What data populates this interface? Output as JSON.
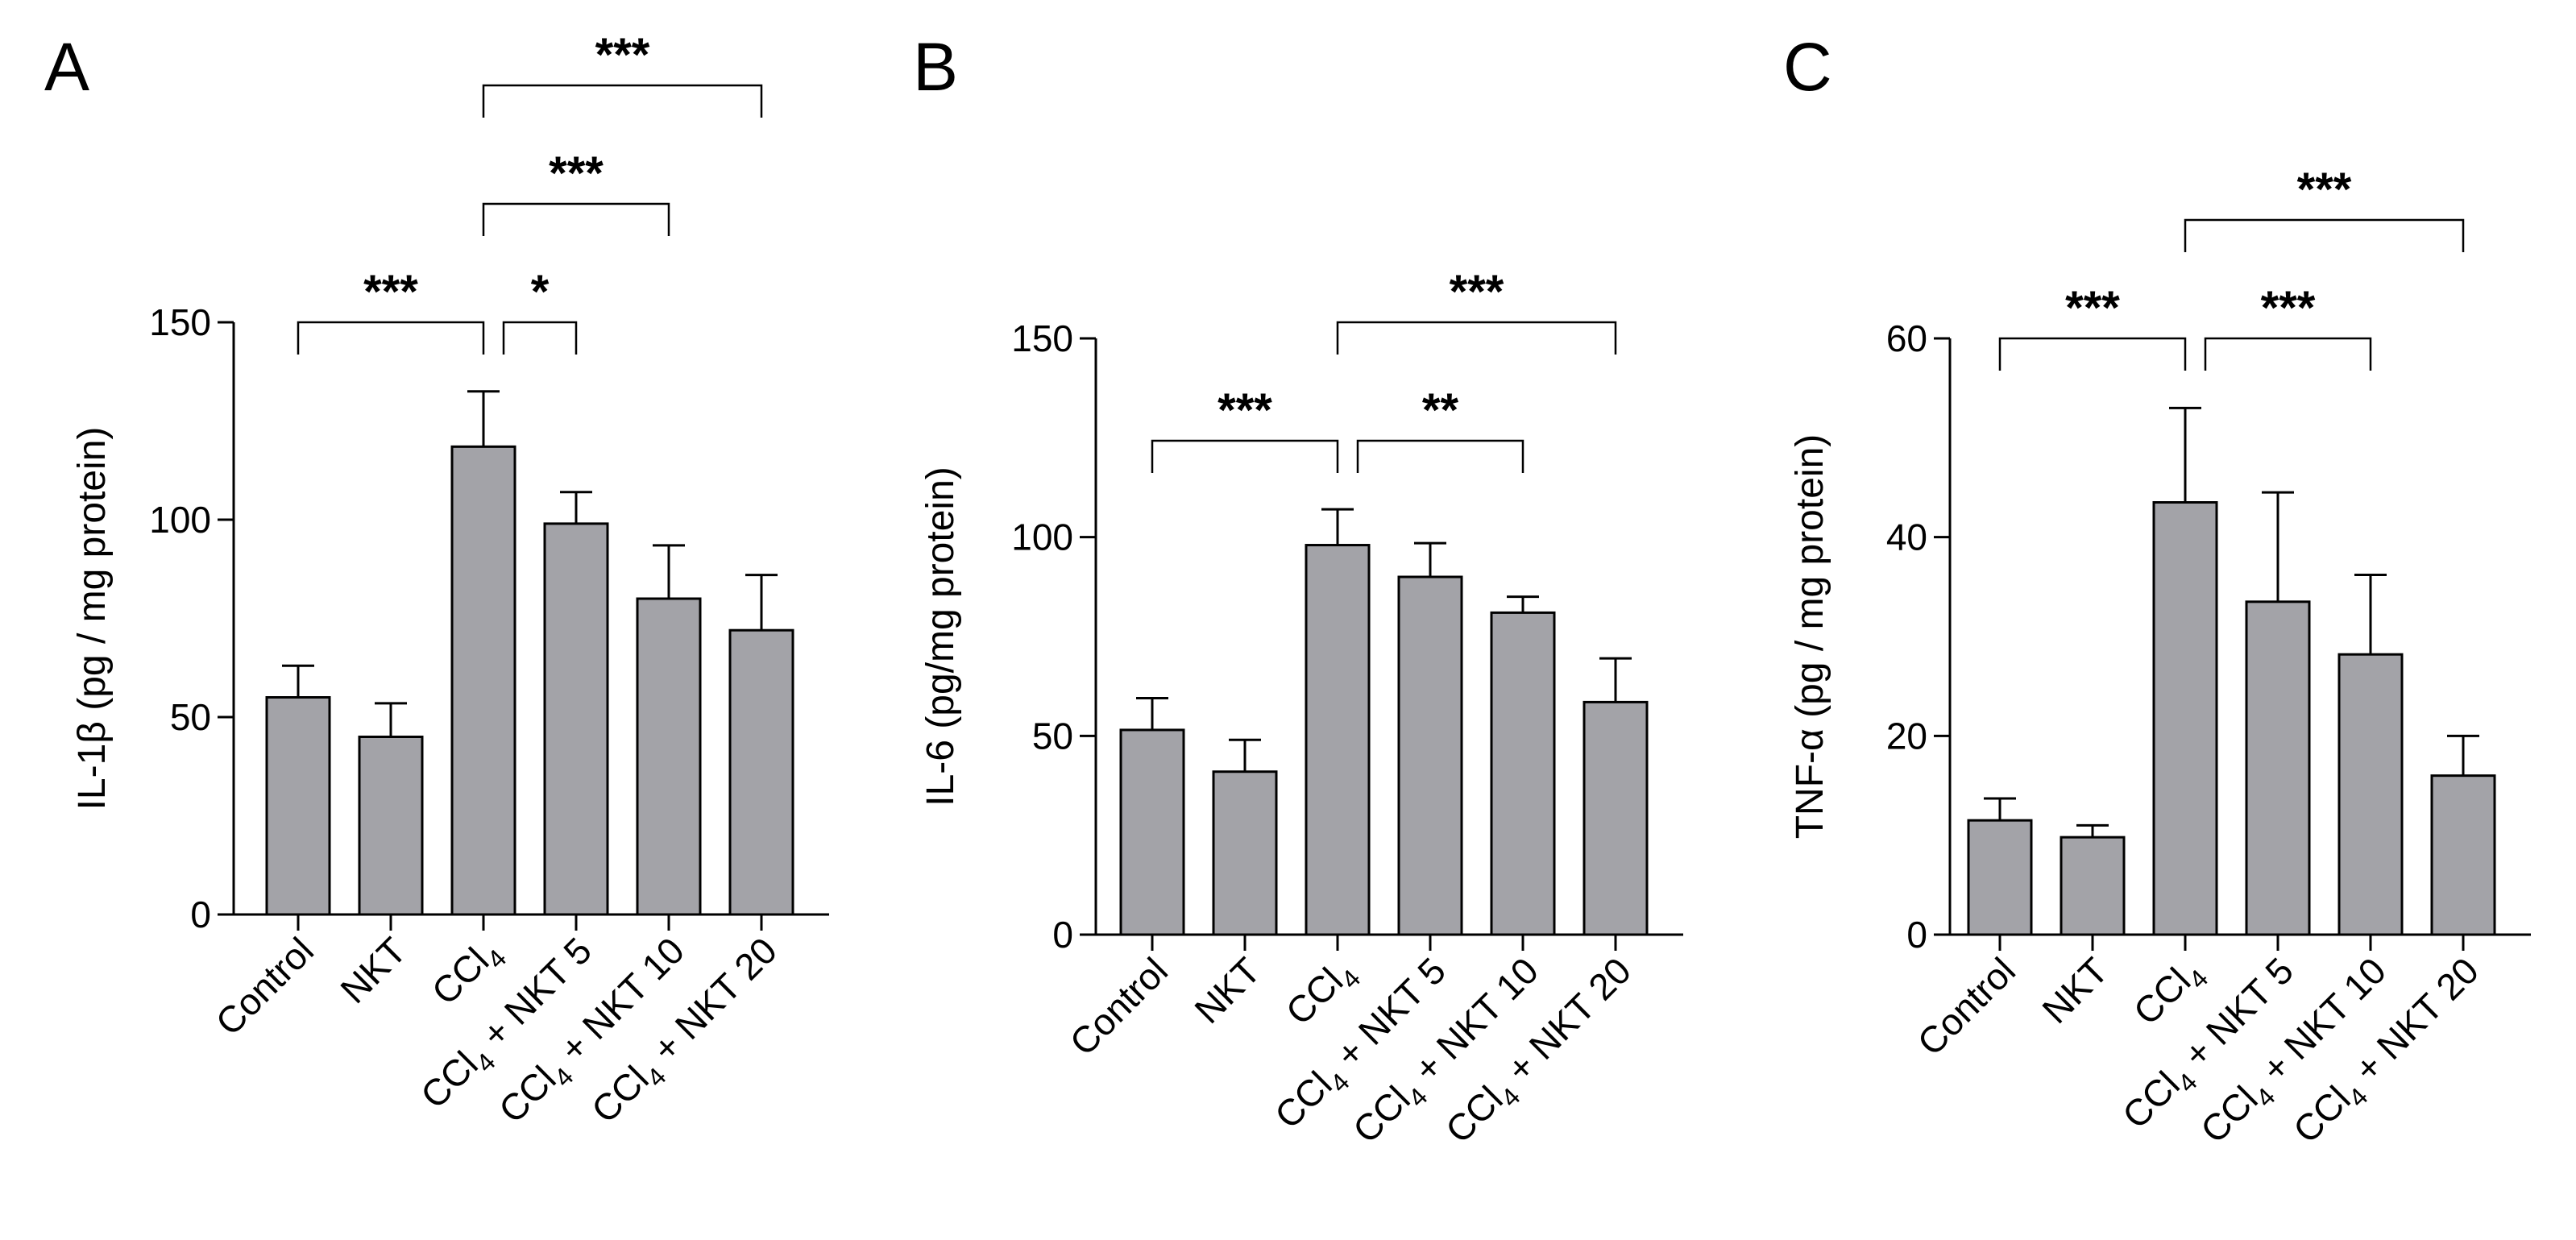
{
  "figure": {
    "panels": [
      "A",
      "B",
      "C"
    ]
  },
  "chart_data": [
    {
      "panel": "A",
      "type": "bar",
      "title": "",
      "ylabel": "IL-1β (pg / mg protein)",
      "xlabel": "",
      "ylim": [
        0,
        150
      ],
      "yticks": [
        0,
        50,
        100,
        150
      ],
      "categories": [
        "Control",
        "NKT",
        "CCl4",
        "CCl4 + NKT 5",
        "CCl4 + NKT 10",
        "CCl4 + NKT 20"
      ],
      "values": [
        55,
        45,
        118.5,
        99,
        80,
        72
      ],
      "errors": [
        8,
        8.5,
        14,
        8,
        13.5,
        14
      ],
      "significance": [
        {
          "from": 0,
          "to": 2,
          "label": "***",
          "level": 0
        },
        {
          "from": 2,
          "to": 3,
          "label": "*",
          "level": 0
        },
        {
          "from": 2,
          "to": 4,
          "label": "***",
          "level": 1
        },
        {
          "from": 2,
          "to": 5,
          "label": "***",
          "level": 2
        }
      ]
    },
    {
      "panel": "B",
      "type": "bar",
      "title": "",
      "ylabel": "IL-6 (pg/mg protein)",
      "xlabel": "",
      "ylim": [
        0,
        150
      ],
      "yticks": [
        0,
        50,
        100,
        150
      ],
      "categories": [
        "Control",
        "NKT",
        "CCl4",
        "CCl4 + NKT 5",
        "CCl4 + NKT 10",
        "CCl4 + NKT 20"
      ],
      "values": [
        51.5,
        41,
        98,
        90,
        81,
        58.5
      ],
      "errors": [
        8,
        8,
        9,
        8.5,
        4,
        11
      ],
      "significance": [
        {
          "from": 0,
          "to": 2,
          "label": "***",
          "level": 0
        },
        {
          "from": 2,
          "to": 4,
          "label": "**",
          "level": 0
        },
        {
          "from": 2,
          "to": 5,
          "label": "***",
          "level": 1
        }
      ]
    },
    {
      "panel": "C",
      "type": "bar",
      "title": "",
      "ylabel": "TNF-α (pg / mg protein)",
      "xlabel": "",
      "ylim": [
        0,
        60
      ],
      "yticks": [
        0,
        20,
        40,
        60
      ],
      "categories": [
        "Control",
        "NKT",
        "CCl4",
        "CCl4 + NKT 5",
        "CCl4 + NKT 10",
        "CCl4 + NKT 20"
      ],
      "values": [
        11.5,
        9.8,
        43.5,
        33.5,
        28.2,
        16
      ],
      "errors": [
        2.2,
        1.2,
        9.5,
        11,
        8,
        4
      ],
      "significance": [
        {
          "from": 0,
          "to": 2,
          "label": "***",
          "level": 0
        },
        {
          "from": 2,
          "to": 4,
          "label": "***",
          "level": 0
        },
        {
          "from": 2,
          "to": 5,
          "label": "***",
          "level": 1
        }
      ]
    }
  ]
}
